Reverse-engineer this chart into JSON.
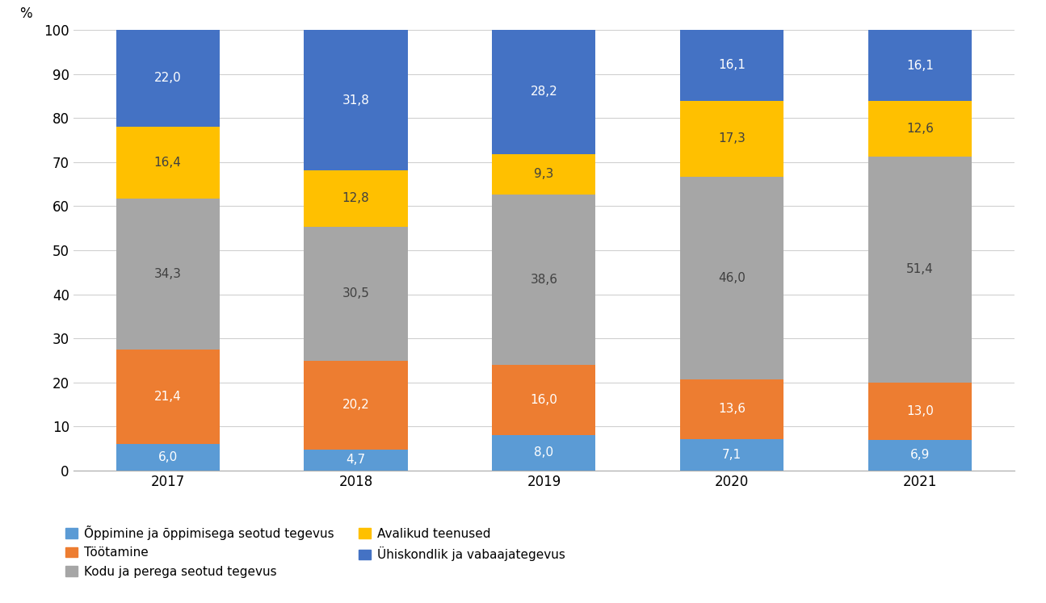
{
  "years": [
    "2017",
    "2018",
    "2019",
    "2020",
    "2021"
  ],
  "series": [
    {
      "label": "Õppimine ja õppimisega seotud tegevus",
      "values": [
        6.0,
        4.7,
        8.0,
        7.1,
        6.9
      ],
      "color": "#5b9bd5"
    },
    {
      "label": "Töötamine",
      "values": [
        21.4,
        20.2,
        16.0,
        13.6,
        13.0
      ],
      "color": "#ed7d31"
    },
    {
      "label": "Kodu ja perega seotud tegevus",
      "values": [
        34.3,
        30.5,
        38.6,
        46.0,
        51.4
      ],
      "color": "#a6a6a6"
    },
    {
      "label": "Avalikud teenused",
      "values": [
        16.4,
        12.8,
        9.3,
        17.3,
        12.6
      ],
      "color": "#ffc000"
    },
    {
      "label": "Ühiskondlik ja vabaajategevus",
      "values": [
        22.0,
        31.8,
        28.2,
        16.1,
        16.1
      ],
      "color": "#4472c4"
    }
  ],
  "ylabel": "%",
  "ylim": [
    0,
    100
  ],
  "yticks": [
    0,
    10,
    20,
    30,
    40,
    50,
    60,
    70,
    80,
    90,
    100
  ],
  "background_color": "#ffffff",
  "bar_width": 0.55,
  "label_fontsize": 11,
  "tick_fontsize": 12,
  "legend_fontsize": 11,
  "text_colors": [
    "white",
    "white",
    "#404040",
    "#404040",
    "white"
  ]
}
